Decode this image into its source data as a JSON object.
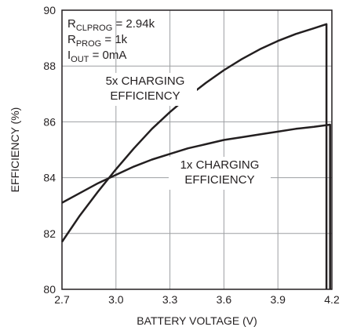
{
  "chart_data": {
    "type": "line",
    "title": "",
    "xlabel": "BATTERY VOLTAGE (V)",
    "ylabel": "EFFICIENCY (%)",
    "xlim": [
      2.7,
      4.2
    ],
    "ylim": [
      80,
      90
    ],
    "x_ticks": [
      2.7,
      3.0,
      3.3,
      3.6,
      3.9,
      4.2
    ],
    "x_tick_labels": [
      "2.7",
      "3.0",
      "3.3",
      "3.6",
      "3.9",
      "4.2"
    ],
    "y_ticks": [
      80,
      82,
      84,
      86,
      88,
      90
    ],
    "y_tick_labels": [
      "80",
      "82",
      "84",
      "86",
      "88",
      "90"
    ],
    "grid": true,
    "colors": {
      "line": "#231f20",
      "grid": "#9d9fa2",
      "text": "#231f20"
    },
    "conditions": [
      {
        "main": "R",
        "sub": "CLPROG",
        "rest": " = 2.94k"
      },
      {
        "main": "R",
        "sub": "PROG",
        "rest": " = 1k"
      },
      {
        "main": "I",
        "sub": "OUT",
        "rest": " = 0mA"
      }
    ],
    "series": [
      {
        "name": "5x CHARGING EFFICIENCY",
        "label_lines": [
          "5x CHARGING",
          "EFFICIENCY"
        ],
        "x": [
          2.7,
          2.8,
          2.9,
          3.0,
          3.1,
          3.2,
          3.3,
          3.4,
          3.5,
          3.6,
          3.7,
          3.8,
          3.9,
          4.0,
          4.1,
          4.17,
          4.17
        ],
        "y": [
          81.7,
          82.65,
          83.5,
          84.3,
          85.05,
          85.75,
          86.35,
          86.9,
          87.4,
          87.85,
          88.25,
          88.6,
          88.9,
          89.15,
          89.35,
          89.5,
          80
        ]
      },
      {
        "name": "1x CHARGING EFFICIENCY",
        "label_lines": [
          "1x CHARGING",
          "EFFICIENCY"
        ],
        "x": [
          2.7,
          2.8,
          2.9,
          3.0,
          3.1,
          3.2,
          3.3,
          3.4,
          3.5,
          3.6,
          3.7,
          3.8,
          3.9,
          4.0,
          4.1,
          4.19,
          4.19
        ],
        "y": [
          83.1,
          83.45,
          83.8,
          84.1,
          84.4,
          84.65,
          84.85,
          85.05,
          85.2,
          85.35,
          85.45,
          85.55,
          85.65,
          85.75,
          85.82,
          85.9,
          80
        ]
      }
    ]
  }
}
